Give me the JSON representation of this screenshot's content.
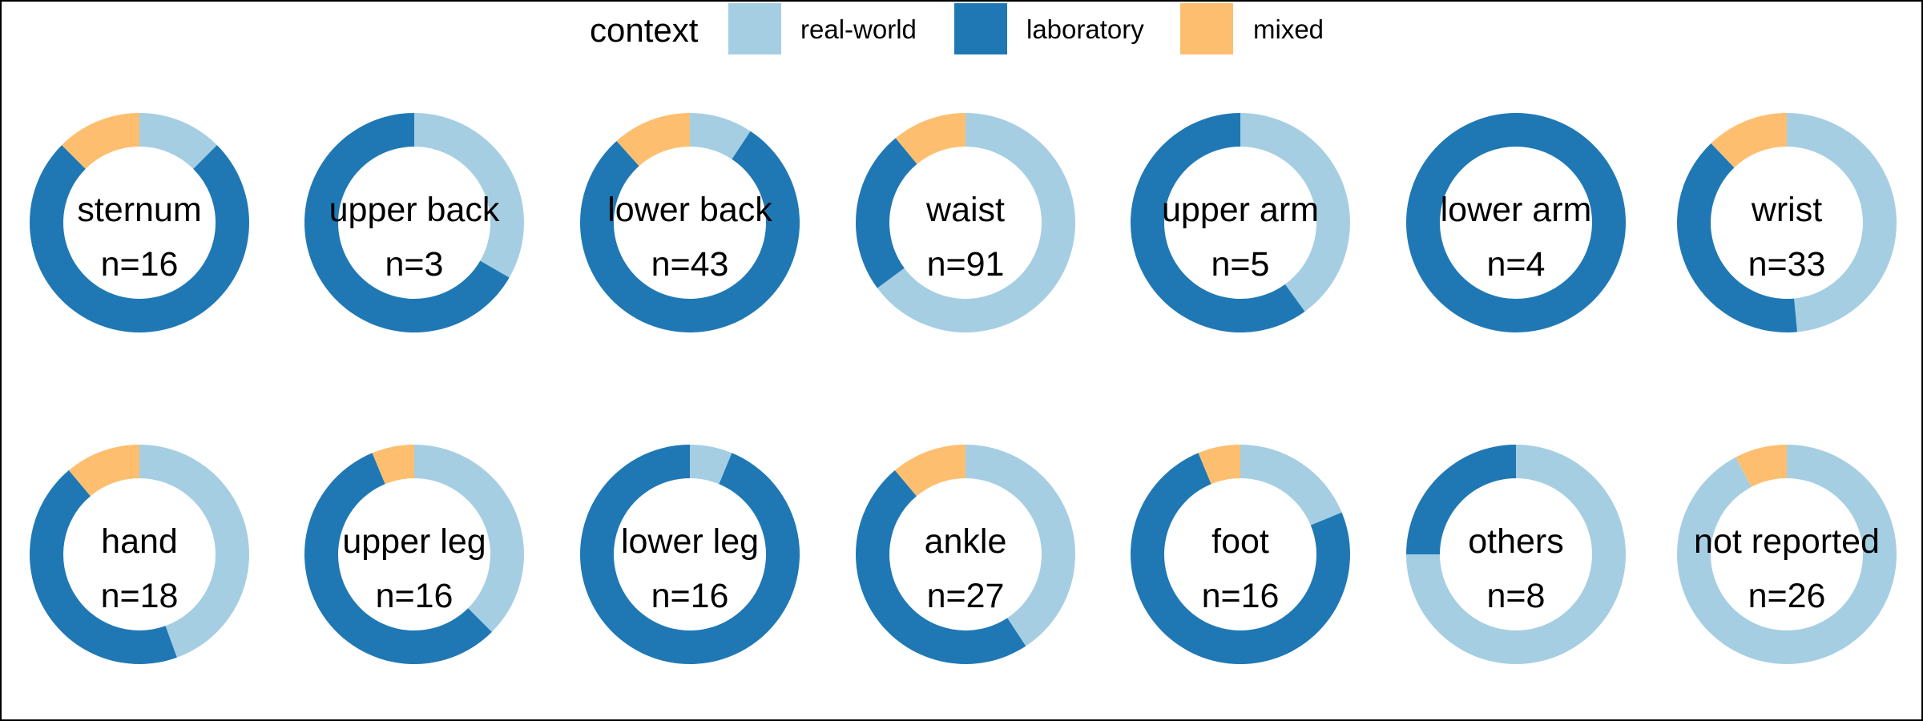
{
  "chart_data": {
    "type": "pie",
    "subtype": "donut",
    "legend": {
      "title": "context",
      "position": "top",
      "entries": [
        {
          "key": "real_world",
          "label": "real-world",
          "color": "#a6cee3"
        },
        {
          "key": "laboratory",
          "label": "laboratory",
          "color": "#1f78b4"
        },
        {
          "key": "mixed",
          "label": "mixed",
          "color": "#fdbf6f"
        }
      ]
    },
    "series_order": [
      "real_world",
      "laboratory",
      "mixed"
    ],
    "panels": [
      {
        "label": "sternum",
        "n_text": "n=16",
        "n": 16,
        "values": {
          "real_world": 2,
          "laboratory": 12,
          "mixed": 2
        }
      },
      {
        "label": "upper back",
        "n_text": "n=3",
        "n": 3,
        "values": {
          "real_world": 1,
          "laboratory": 2,
          "mixed": 0
        }
      },
      {
        "label": "lower back",
        "n_text": "n=43",
        "n": 43,
        "values": {
          "real_world": 4,
          "laboratory": 34,
          "mixed": 5
        }
      },
      {
        "label": "waist",
        "n_text": "n=91",
        "n": 91,
        "values": {
          "real_world": 59,
          "laboratory": 22,
          "mixed": 10
        }
      },
      {
        "label": "upper arm",
        "n_text": "n=5",
        "n": 5,
        "values": {
          "real_world": 2,
          "laboratory": 3,
          "mixed": 0
        }
      },
      {
        "label": "lower arm",
        "n_text": "n=4",
        "n": 4,
        "values": {
          "real_world": 0,
          "laboratory": 4,
          "mixed": 0
        }
      },
      {
        "label": "wrist",
        "n_text": "n=33",
        "n": 33,
        "values": {
          "real_world": 16,
          "laboratory": 13,
          "mixed": 4
        }
      },
      {
        "label": "hand",
        "n_text": "n=18",
        "n": 18,
        "values": {
          "real_world": 8,
          "laboratory": 8,
          "mixed": 2
        }
      },
      {
        "label": "upper leg",
        "n_text": "n=16",
        "n": 16,
        "values": {
          "real_world": 6,
          "laboratory": 9,
          "mixed": 1
        }
      },
      {
        "label": "lower leg",
        "n_text": "n=16",
        "n": 16,
        "values": {
          "real_world": 1,
          "laboratory": 15,
          "mixed": 0
        }
      },
      {
        "label": "ankle",
        "n_text": "n=27",
        "n": 27,
        "values": {
          "real_world": 11,
          "laboratory": 13,
          "mixed": 3
        }
      },
      {
        "label": "foot",
        "n_text": "n=16",
        "n": 16,
        "values": {
          "real_world": 3,
          "laboratory": 12,
          "mixed": 1
        }
      },
      {
        "label": "others",
        "n_text": "n=8",
        "n": 8,
        "values": {
          "real_world": 6,
          "laboratory": 2,
          "mixed": 0
        }
      },
      {
        "label": "not reported",
        "n_text": "n=26",
        "n": 26,
        "values": {
          "real_world": 24,
          "laboratory": 0,
          "mixed": 2
        }
      }
    ]
  }
}
